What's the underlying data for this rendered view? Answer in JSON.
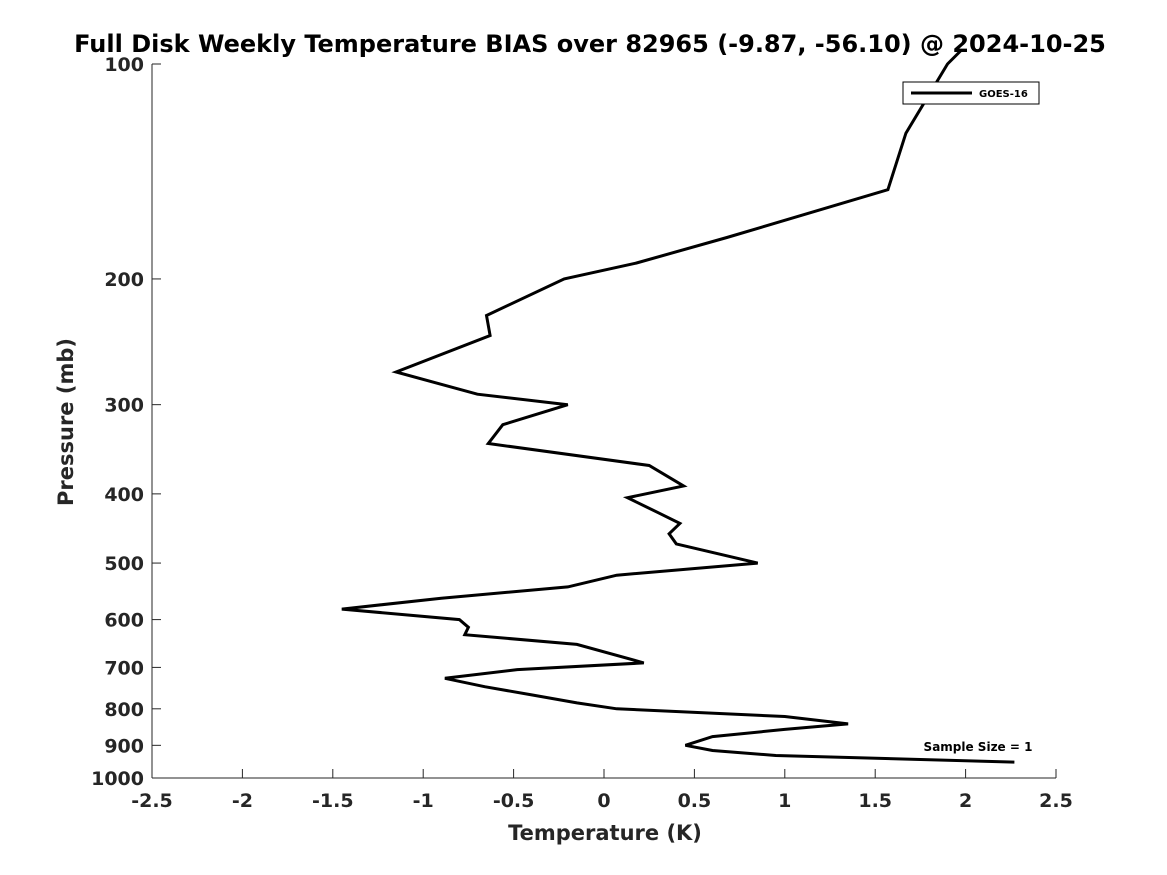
{
  "chart_data": {
    "type": "line",
    "title": "Full Disk Weekly Temperature BIAS over 82965 (-9.87, -56.10) @ 2024-10-25",
    "xlabel": "Temperature (K)",
    "ylabel": "Pressure (mb)",
    "xlim": [
      -2.5,
      2.5
    ],
    "ylim": [
      1000,
      100
    ],
    "yscale": "log",
    "y_reversed": true,
    "grid": false,
    "x_ticks": [
      "-2.5",
      "-2",
      "-1.5",
      "-1",
      "-0.5",
      "0",
      "0.5",
      "1",
      "1.5",
      "2",
      "2.5"
    ],
    "y_ticks": [
      "100",
      "200",
      "300",
      "400",
      "500",
      "600",
      "700",
      "800",
      "900",
      "1000"
    ],
    "legend_position": "top-right",
    "series": [
      {
        "name": "GOES-16",
        "color": "#000000",
        "points": [
          {
            "x": 1.9,
            "y": 100
          },
          {
            "x": 1.67,
            "y": 125
          },
          {
            "x": 1.57,
            "y": 150
          },
          {
            "x": 0.68,
            "y": 175
          },
          {
            "x": 0.18,
            "y": 190
          },
          {
            "x": -0.22,
            "y": 200
          },
          {
            "x": -0.65,
            "y": 225
          },
          {
            "x": -0.63,
            "y": 240
          },
          {
            "x": -1.15,
            "y": 270
          },
          {
            "x": -0.7,
            "y": 290
          },
          {
            "x": -0.2,
            "y": 300
          },
          {
            "x": -0.56,
            "y": 320
          },
          {
            "x": -0.64,
            "y": 340
          },
          {
            "x": 0.25,
            "y": 365
          },
          {
            "x": 0.44,
            "y": 390
          },
          {
            "x": 0.13,
            "y": 405
          },
          {
            "x": 0.3,
            "y": 425
          },
          {
            "x": 0.42,
            "y": 440
          },
          {
            "x": 0.36,
            "y": 455
          },
          {
            "x": 0.4,
            "y": 470
          },
          {
            "x": 0.85,
            "y": 500
          },
          {
            "x": 0.07,
            "y": 520
          },
          {
            "x": -0.2,
            "y": 540
          },
          {
            "x": -0.9,
            "y": 560
          },
          {
            "x": -1.45,
            "y": 580
          },
          {
            "x": -0.8,
            "y": 600
          },
          {
            "x": -0.75,
            "y": 615
          },
          {
            "x": -0.77,
            "y": 630
          },
          {
            "x": -0.15,
            "y": 650
          },
          {
            "x": 0.22,
            "y": 690
          },
          {
            "x": -0.48,
            "y": 705
          },
          {
            "x": -0.88,
            "y": 725
          },
          {
            "x": -0.66,
            "y": 745
          },
          {
            "x": -0.4,
            "y": 765
          },
          {
            "x": -0.15,
            "y": 785
          },
          {
            "x": 0.07,
            "y": 800
          },
          {
            "x": 1.0,
            "y": 820
          },
          {
            "x": 1.35,
            "y": 840
          },
          {
            "x": 1.0,
            "y": 855
          },
          {
            "x": 0.6,
            "y": 875
          },
          {
            "x": 0.45,
            "y": 900
          },
          {
            "x": 0.6,
            "y": 915
          },
          {
            "x": 0.95,
            "y": 930
          },
          {
            "x": 2.27,
            "y": 950
          }
        ]
      }
    ],
    "annotations": [
      {
        "text": "Sample Size = 1",
        "x": 2.2,
        "y": 900
      }
    ]
  }
}
